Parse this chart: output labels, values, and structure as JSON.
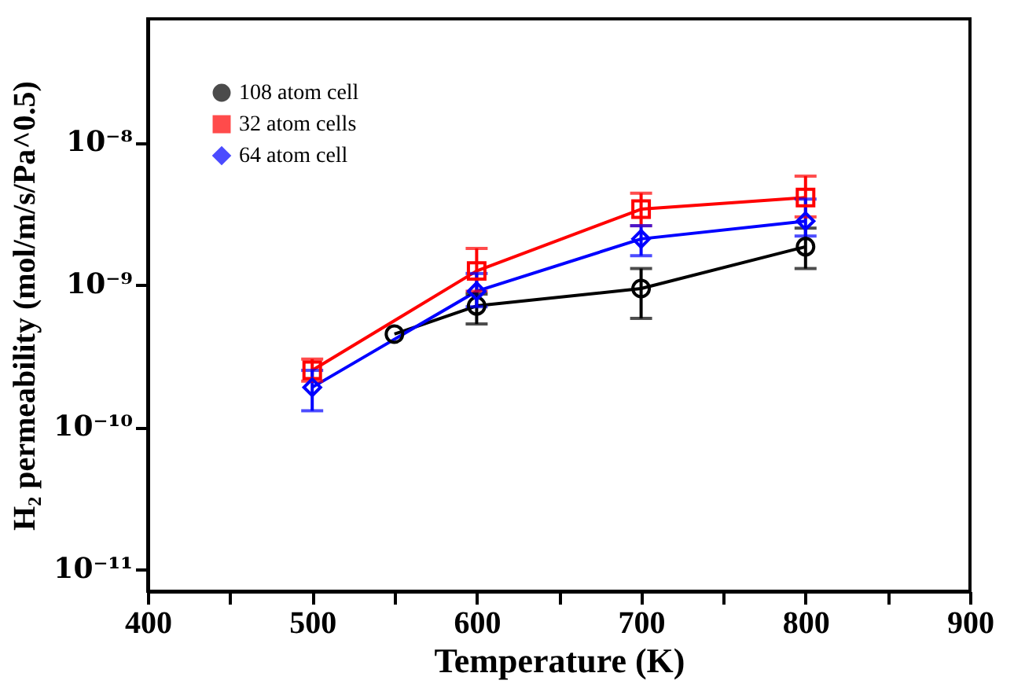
{
  "chart_data": {
    "type": "line",
    "xlabel": "Temperature (K)",
    "ylabel": "H₂ permeability (mol/m/s/Pa^0.5)",
    "log": true,
    "grid": false,
    "legend": "top left",
    "line_style": "solid",
    "xlim": [
      400,
      900
    ],
    "xticks": [
      400,
      {
        "value": 450,
        "label": null
      },
      500,
      {
        "value": 550,
        "label": null
      },
      600,
      {
        "value": 650,
        "label": null
      },
      700,
      {
        "value": 750,
        "label": null
      },
      800,
      {
        "value": 850,
        "label": null
      },
      900
    ],
    "ylim": [
      7e-12,
      7.4e-08
    ],
    "yticks": [
      {
        "value": 1e-11,
        "label": "10⁻¹¹"
      },
      {
        "value": 1e-10,
        "label": "10⁻¹⁰"
      },
      {
        "value": 1e-09,
        "label": "10⁻⁹"
      },
      {
        "value": 1e-08,
        "label": "10⁻⁸"
      }
    ],
    "series": [
      {
        "name": "108 atom cell",
        "color": "#000000",
        "marker": "circle",
        "x": [
          550,
          600,
          700,
          800
        ],
        "values": [
          4.5e-10,
          7.1e-10,
          9.4e-10,
          1.85e-09
        ],
        "errors": [
          null,
          [
            5.3e-10,
            8.6e-10
          ],
          [
            5.8e-10,
            1.3e-09
          ],
          [
            1.3e-09,
            2.5e-09
          ]
        ]
      },
      {
        "name": "32 atom cells",
        "color": "#ff0000",
        "marker": "square",
        "x": [
          500,
          600,
          700,
          800
        ],
        "values": [
          2.5e-10,
          1.25e-09,
          3.4e-09,
          4.1e-09
        ],
        "errors": [
          [
            2.1e-10,
            3e-10
          ],
          [
            9e-10,
            1.8e-09
          ],
          [
            2.6e-09,
            4.4e-09
          ],
          [
            3e-09,
            5.8e-09
          ]
        ]
      },
      {
        "name": "64 atom cell",
        "color": "#0000ff",
        "marker": "diamond",
        "x": [
          500,
          600,
          700,
          800
        ],
        "values": [
          1.9e-10,
          9e-10,
          2.1e-09,
          2.8e-09
        ],
        "errors": [
          [
            1.3e-10,
            2.5e-10
          ],
          [
            7e-10,
            1.2e-09
          ],
          [
            1.6e-09,
            2.6e-09
          ],
          [
            2.2e-09,
            4e-09
          ]
        ]
      }
    ]
  }
}
